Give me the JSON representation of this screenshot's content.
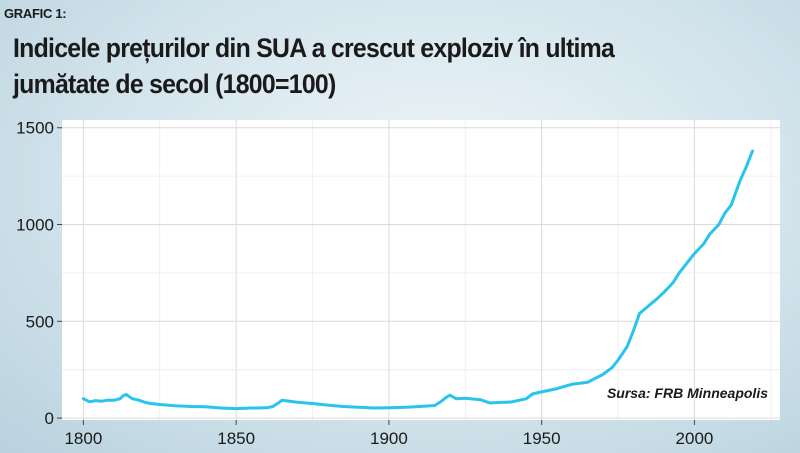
{
  "header": {
    "label": "GRAFIC 1:",
    "title_line1": "Indicele prețurilor din SUA a crescut exploziv în  ultima",
    "title_line2": "jumătate de secol (1800=100)"
  },
  "chart_data": {
    "type": "line",
    "title": "Indicele prețurilor din SUA a crescut exploziv în  ultima jumătate de secol (1800=100)",
    "xlabel": "",
    "ylabel": "",
    "xlim": [
      1793,
      2028
    ],
    "ylim": [
      -10,
      1540
    ],
    "x_ticks": [
      1800,
      1850,
      1900,
      1950,
      2000
    ],
    "y_ticks": [
      0,
      500,
      1000,
      1500
    ],
    "grid": true,
    "line_color": "#29c4ee",
    "annotation": "Sursa: FRB Minneapolis",
    "series": [
      {
        "x": [
          1800,
          1802,
          1804,
          1806,
          1808,
          1810,
          1812,
          1813,
          1814,
          1816,
          1818,
          1820,
          1822,
          1825,
          1830,
          1835,
          1840,
          1845,
          1850,
          1855,
          1860,
          1862,
          1864,
          1865,
          1870,
          1875,
          1880,
          1885,
          1890,
          1895,
          1900,
          1905,
          1910,
          1915,
          1917,
          1919,
          1920,
          1922,
          1925,
          1930,
          1933,
          1935,
          1940,
          1945,
          1947,
          1950,
          1955,
          1960,
          1965,
          1970,
          1973,
          1975,
          1978,
          1980,
          1982,
          1985,
          1988,
          1990,
          1993,
          1995,
          1998,
          2000,
          2003,
          2005,
          2008,
          2009,
          2010,
          2012,
          2015,
          2017,
          2019
        ],
        "y": [
          100,
          84,
          90,
          87,
          93,
          92,
          100,
          115,
          122,
          100,
          93,
          82,
          75,
          70,
          64,
          60,
          58,
          52,
          49,
          52,
          53,
          60,
          80,
          92,
          82,
          75,
          67,
          60,
          56,
          52,
          53,
          55,
          60,
          65,
          85,
          110,
          118,
          100,
          102,
          95,
          78,
          80,
          83,
          100,
          125,
          135,
          152,
          175,
          185,
          225,
          260,
          300,
          370,
          450,
          540,
          580,
          620,
          650,
          700,
          750,
          810,
          850,
          900,
          950,
          1000,
          1030,
          1060,
          1100,
          1230,
          1300,
          1380
        ]
      }
    ]
  }
}
